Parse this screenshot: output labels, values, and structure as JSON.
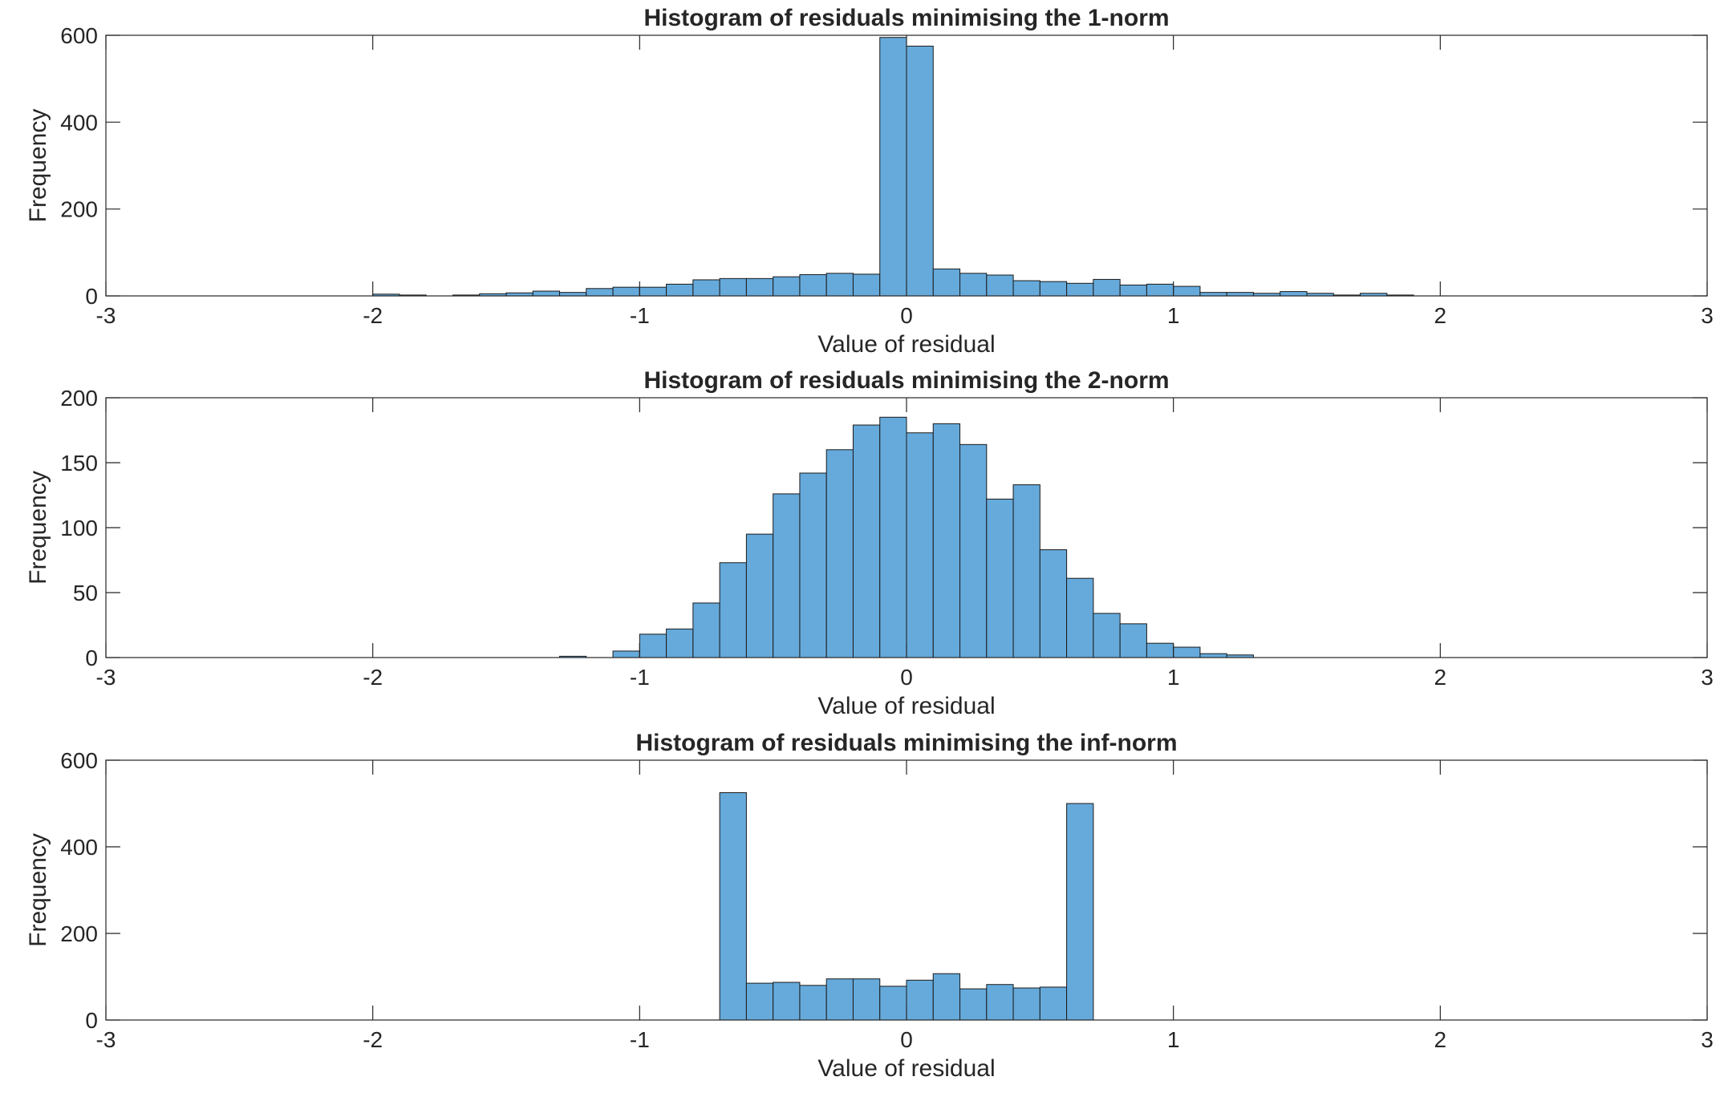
{
  "chart_data": [
    {
      "type": "bar",
      "title": "Histogram of residuals minimising the 1-norm",
      "xlabel": "Value of residual",
      "ylabel": "Frequency",
      "xlim": [
        -3,
        3
      ],
      "ylim": [
        0,
        600
      ],
      "xticks": [
        "-3",
        "-2",
        "-1",
        "0",
        "1",
        "2",
        "3"
      ],
      "yticks": [
        "0",
        "200",
        "400",
        "600"
      ],
      "bar_color": "#66AADB",
      "bin_width": 0.1,
      "bins_start": [
        -2.0,
        -1.9,
        -1.8,
        -1.7,
        -1.6,
        -1.5,
        -1.4,
        -1.3,
        -1.2,
        -1.1,
        -1.0,
        -0.9,
        -0.8,
        -0.7,
        -0.6,
        -0.5,
        -0.4,
        -0.3,
        -0.2,
        -0.1,
        0.0,
        0.1,
        0.2,
        0.3,
        0.4,
        0.5,
        0.6,
        0.7,
        0.8,
        0.9,
        1.0,
        1.1,
        1.2,
        1.3,
        1.4,
        1.5,
        1.6,
        1.7,
        1.8
      ],
      "values": [
        4,
        2,
        0,
        2,
        5,
        7,
        11,
        8,
        17,
        20,
        20,
        27,
        37,
        40,
        40,
        44,
        49,
        52,
        50,
        595,
        575,
        62,
        52,
        48,
        35,
        33,
        29,
        38,
        25,
        27,
        22,
        8,
        8,
        6,
        10,
        6,
        2,
        6,
        2
      ]
    },
    {
      "type": "bar",
      "title": "Histogram of residuals minimising the 2-norm",
      "xlabel": "Value of residual",
      "ylabel": "Frequency",
      "xlim": [
        -3,
        3
      ],
      "ylim": [
        0,
        200
      ],
      "xticks": [
        "-3",
        "-2",
        "-1",
        "0",
        "1",
        "2",
        "3"
      ],
      "yticks": [
        "0",
        "50",
        "100",
        "150",
        "200"
      ],
      "bar_color": "#66AADB",
      "bin_width": 0.1,
      "bins_start": [
        -1.3,
        -1.2,
        -1.1,
        -1.0,
        -0.9,
        -0.8,
        -0.7,
        -0.6,
        -0.5,
        -0.4,
        -0.3,
        -0.2,
        -0.1,
        0.0,
        0.1,
        0.2,
        0.3,
        0.4,
        0.5,
        0.6,
        0.7,
        0.8,
        0.9,
        1.0,
        1.1,
        1.2
      ],
      "values": [
        1,
        0,
        5,
        18,
        22,
        42,
        73,
        95,
        126,
        142,
        160,
        179,
        185,
        173,
        180,
        164,
        122,
        133,
        83,
        61,
        34,
        26,
        11,
        8,
        3,
        2
      ]
    },
    {
      "type": "bar",
      "title": "Histogram of residuals minimising the inf-norm",
      "xlabel": "Value of residual",
      "ylabel": "Frequency",
      "xlim": [
        -3,
        3
      ],
      "ylim": [
        0,
        600
      ],
      "xticks": [
        "-3",
        "-2",
        "-1",
        "0",
        "1",
        "2",
        "3"
      ],
      "yticks": [
        "0",
        "200",
        "400",
        "600"
      ],
      "bar_color": "#66AADB",
      "bin_width": 0.1,
      "bins_start": [
        -0.7,
        -0.6,
        -0.5,
        -0.4,
        -0.3,
        -0.2,
        -0.1,
        0.0,
        0.1,
        0.2,
        0.3,
        0.4,
        0.5,
        0.6
      ],
      "values": [
        525,
        85,
        87,
        80,
        95,
        95,
        78,
        92,
        107,
        72,
        82,
        74,
        76,
        500
      ]
    }
  ]
}
